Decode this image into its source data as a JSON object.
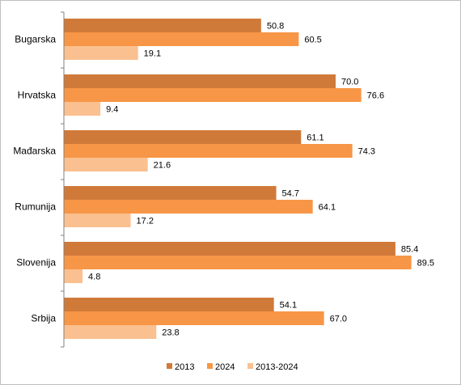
{
  "chart_data": {
    "type": "bar",
    "orientation": "horizontal",
    "categories": [
      "Bugarska",
      "Hrvatska",
      "Mađarska",
      "Rumunija",
      "Slovenija",
      "Srbija"
    ],
    "series": [
      {
        "name": "2013",
        "color": "#d07a3a",
        "values": [
          50.8,
          70.0,
          61.1,
          54.7,
          85.4,
          54.1
        ]
      },
      {
        "name": "2024",
        "color": "#f79646",
        "values": [
          60.5,
          76.6,
          74.3,
          64.1,
          89.5,
          67.0
        ]
      },
      {
        "name": "2013-2024",
        "color": "#fac090",
        "values": [
          19.1,
          9.4,
          21.6,
          17.2,
          4.8,
          23.8
        ]
      }
    ],
    "xlim": [
      0,
      100
    ],
    "grid": false,
    "legend_position": "bottom",
    "value_labels_decimals": 1
  }
}
